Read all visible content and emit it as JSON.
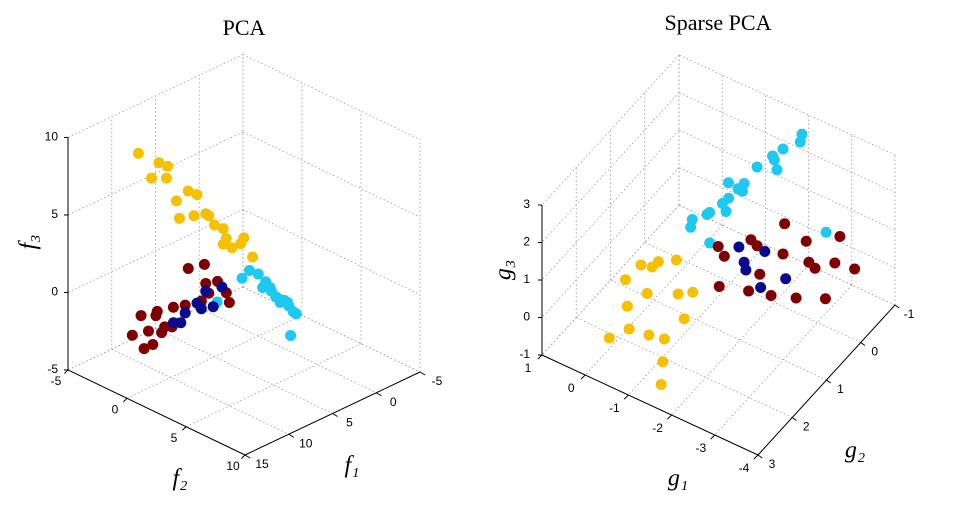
{
  "chart_data": [
    {
      "type": "scatter3d",
      "title": "PCA",
      "xlabel": "f₁",
      "ylabel": "f₂",
      "zlabel": "f₃",
      "xlim": [
        -5,
        15
      ],
      "ylim": [
        -5,
        10
      ],
      "zlim": [
        -5,
        10
      ],
      "xticks": [
        -5,
        0,
        5,
        10,
        15
      ],
      "yticks": [
        -5,
        0,
        5,
        10
      ],
      "zticks": [
        -5,
        0,
        5,
        10
      ],
      "grid": true,
      "series": [
        {
          "color": "#f5c000",
          "x": [
            11,
            10,
            10.5,
            9,
            9.5,
            8,
            8,
            7,
            7,
            6,
            6,
            5,
            5,
            4,
            4,
            3,
            3,
            2,
            2,
            9
          ],
          "y": [
            -2,
            -1,
            0,
            -1,
            -2,
            0,
            -1,
            0,
            1,
            0,
            -1,
            0,
            1,
            0,
            0,
            1,
            0,
            0,
            1,
            0
          ],
          "z": [
            9,
            8.5,
            8,
            8,
            7,
            6.5,
            5.5,
            6,
            5,
            4.5,
            4,
            3.5,
            3,
            3,
            2,
            2.5,
            1.5,
            1.5,
            1,
            5
          ]
        },
        {
          "color": "#1ec8f0",
          "x": [
            1,
            0.5,
            0,
            0,
            -0.5,
            -1,
            -1,
            -1.5,
            -2,
            -2,
            -2.5,
            -3,
            -3,
            -3.5,
            -4,
            2,
            -1,
            0.5
          ],
          "y": [
            0,
            1,
            0,
            1,
            0,
            0,
            1,
            0,
            0,
            1,
            0,
            0,
            1,
            0,
            0,
            -2,
            2,
            -1
          ],
          "z": [
            -0.5,
            -1,
            -1,
            -1.5,
            -2,
            -2,
            -2.5,
            -2.5,
            -3,
            -3,
            -3.5,
            -3.5,
            -4,
            -4,
            -4.5,
            -3,
            -4.5,
            -1.5
          ]
        },
        {
          "color": "#7f0000",
          "x": [
            9,
            8.5,
            8,
            8,
            7.5,
            7,
            8,
            9,
            7,
            6.5,
            7,
            6,
            6,
            8,
            7.5,
            8.5,
            7,
            6,
            5,
            9
          ],
          "y": [
            -4,
            -3,
            -4,
            -2,
            -3,
            -2,
            -3,
            -3,
            -1,
            0,
            1,
            1,
            0,
            0,
            1,
            -1,
            -3,
            2,
            1,
            -2
          ],
          "z": [
            -4,
            -3.5,
            -3,
            -3,
            -2.5,
            -2,
            -4.5,
            -4.5,
            -1.5,
            -1,
            0,
            0.5,
            0,
            1.5,
            2,
            -2.5,
            -4,
            -0.5,
            -0.5,
            -2
          ]
        },
        {
          "color": "#0a0a8c",
          "x": [
            7,
            6.5,
            7,
            6,
            7.5,
            6.5,
            7,
            5.5
          ],
          "y": [
            0,
            0,
            -1,
            0,
            -1,
            1,
            -2,
            1
          ],
          "z": [
            -1,
            -1.5,
            -2,
            -0.5,
            -2.5,
            -1,
            -3,
            0
          ]
        }
      ]
    },
    {
      "type": "scatter3d",
      "title": "Sparse PCA",
      "xlabel": "g₁",
      "ylabel": "g₂",
      "zlabel": "g₃",
      "xlim": [
        -4,
        1
      ],
      "ylim": [
        -1,
        3
      ],
      "zlim": [
        -1,
        3
      ],
      "xticks": [
        -4,
        -3,
        -2,
        -1,
        0,
        1
      ],
      "yticks": [
        -1,
        0,
        1,
        2,
        3
      ],
      "zticks": [
        -1,
        0,
        1,
        2,
        3
      ],
      "grid": true,
      "series": [
        {
          "color": "#1ec8f0",
          "x": [
            -2.6,
            -2.4,
            -2.2,
            -2.3,
            -2,
            -1.8,
            -1.6,
            -1.5,
            -1.3,
            -1.1,
            -1,
            -0.8,
            -0.6,
            -0.5,
            -0.3,
            -0.1,
            -0.7,
            -1.2,
            -2.8,
            -0.9
          ],
          "y": [
            0,
            -0.3,
            0,
            0.3,
            0,
            -0.2,
            0,
            0.3,
            0,
            0.2,
            -0.2,
            0,
            0.2,
            0,
            0.3,
            0,
            -0.3,
            0.4,
            -0.5,
            0.5
          ],
          "z": [
            3.6,
            3.4,
            3.2,
            3.0,
            2.8,
            2.6,
            2.4,
            2.0,
            1.8,
            1.5,
            1.3,
            1.0,
            0.8,
            0.6,
            0.4,
            0.2,
            1.2,
            1.4,
            0.8,
            0.5
          ]
        },
        {
          "color": "#f5c000",
          "x": [
            -0.5,
            -0.6,
            -0.8,
            -0.5,
            -0.7,
            -1,
            -1.2,
            -1.4,
            -1.5,
            -1.2,
            -1,
            -0.9,
            -0.3,
            -1.6,
            -1.3,
            -0.4
          ],
          "y": [
            2,
            1.8,
            2.2,
            2.4,
            2.6,
            2.4,
            2.2,
            2.5,
            2,
            1.8,
            1.6,
            2,
            2.2,
            2.8,
            1.5,
            2.8
          ],
          "z": [
            1.2,
            1.0,
            0.8,
            0.5,
            0.2,
            0,
            -0.2,
            -0.4,
            0.3,
            0.6,
            1.2,
            1.5,
            0.9,
            -0.6,
            0.4,
            0.0
          ]
        },
        {
          "color": "#7f0000",
          "x": [
            -0.7,
            -1,
            -1.3,
            -1.6,
            -1.9,
            -2.2,
            -2.5,
            -2.8,
            -3.1,
            -3.4,
            -3.7,
            -3.5,
            -2.9,
            -2.4,
            -1.8,
            -3.2,
            -2,
            -1.2
          ],
          "y": [
            0,
            0.2,
            -0.2,
            0,
            0.3,
            0,
            -0.3,
            0,
            0.2,
            0,
            -0.2,
            0.4,
            0.5,
            0.6,
            0.5,
            -0.4,
            -0.3,
            0.6
          ],
          "z": [
            -0.2,
            -0.1,
            0.1,
            0.3,
            0,
            0.4,
            0.6,
            0.5,
            0.7,
            0.8,
            0.6,
            0.3,
            0.1,
            0,
            -0.3,
            1.0,
            0.8,
            -0.4
          ]
        },
        {
          "color": "#0a0a8c",
          "x": [
            -1.3,
            -1.5,
            -1.1,
            -2,
            -1.7,
            -2.5
          ],
          "y": [
            0,
            0.2,
            -0.1,
            0.4,
            -0.1,
            0.3
          ],
          "z": [
            -0.3,
            -0.2,
            -0.1,
            -0.2,
            0.1,
            0.2
          ]
        }
      ]
    }
  ]
}
